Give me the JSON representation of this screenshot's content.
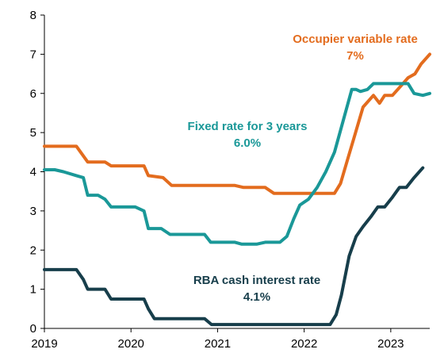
{
  "chart_data": {
    "type": "line",
    "title": "",
    "xlabel": "",
    "ylabel": "",
    "xlim": [
      2019.0,
      2023.45
    ],
    "ylim": [
      0,
      8
    ],
    "yticks": [
      0,
      1,
      2,
      3,
      4,
      5,
      6,
      7,
      8
    ],
    "xticks": [
      "2019",
      "2020",
      "2021",
      "2022",
      "2023"
    ],
    "grid": false,
    "legend": "none",
    "series": [
      {
        "name": "Occupier variable rate",
        "color": "#e36c1e",
        "annotation": [
          "Occupier variable rate",
          "7%"
        ],
        "points": [
          [
            2019.0,
            4.65
          ],
          [
            2019.37,
            4.65
          ],
          [
            2019.5,
            4.25
          ],
          [
            2019.7,
            4.25
          ],
          [
            2019.77,
            4.15
          ],
          [
            2020.15,
            4.15
          ],
          [
            2020.2,
            3.9
          ],
          [
            2020.37,
            3.85
          ],
          [
            2020.47,
            3.65
          ],
          [
            2021.2,
            3.65
          ],
          [
            2021.3,
            3.6
          ],
          [
            2021.47,
            3.6
          ],
          [
            2021.55,
            3.6
          ],
          [
            2021.65,
            3.45
          ],
          [
            2022.35,
            3.45
          ],
          [
            2022.42,
            3.7
          ],
          [
            2022.5,
            4.3
          ],
          [
            2022.58,
            4.9
          ],
          [
            2022.68,
            5.65
          ],
          [
            2022.8,
            5.95
          ],
          [
            2022.87,
            5.75
          ],
          [
            2022.93,
            5.95
          ],
          [
            2023.02,
            5.95
          ],
          [
            2023.12,
            6.2
          ],
          [
            2023.2,
            6.4
          ],
          [
            2023.28,
            6.5
          ],
          [
            2023.35,
            6.75
          ],
          [
            2023.45,
            7.0
          ]
        ]
      },
      {
        "name": "Fixed rate for 3 years",
        "color": "#1a9898",
        "annotation": [
          "Fixed rate for 3 years",
          "6.0%"
        ],
        "points": [
          [
            2019.0,
            4.05
          ],
          [
            2019.12,
            4.05
          ],
          [
            2019.22,
            4.0
          ],
          [
            2019.37,
            3.9
          ],
          [
            2019.45,
            3.85
          ],
          [
            2019.5,
            3.4
          ],
          [
            2019.62,
            3.4
          ],
          [
            2019.7,
            3.3
          ],
          [
            2019.77,
            3.1
          ],
          [
            2020.05,
            3.1
          ],
          [
            2020.15,
            3.0
          ],
          [
            2020.2,
            2.55
          ],
          [
            2020.35,
            2.55
          ],
          [
            2020.45,
            2.4
          ],
          [
            2020.85,
            2.4
          ],
          [
            2020.92,
            2.2
          ],
          [
            2021.2,
            2.2
          ],
          [
            2021.28,
            2.15
          ],
          [
            2021.45,
            2.15
          ],
          [
            2021.55,
            2.2
          ],
          [
            2021.72,
            2.2
          ],
          [
            2021.8,
            2.35
          ],
          [
            2021.88,
            2.8
          ],
          [
            2021.95,
            3.15
          ],
          [
            2022.05,
            3.3
          ],
          [
            2022.15,
            3.6
          ],
          [
            2022.25,
            4.0
          ],
          [
            2022.35,
            4.5
          ],
          [
            2022.45,
            5.3
          ],
          [
            2022.55,
            6.1
          ],
          [
            2022.6,
            6.1
          ],
          [
            2022.65,
            6.05
          ],
          [
            2022.73,
            6.1
          ],
          [
            2022.8,
            6.25
          ],
          [
            2022.9,
            6.25
          ],
          [
            2023.2,
            6.25
          ],
          [
            2023.27,
            6.0
          ],
          [
            2023.37,
            5.95
          ],
          [
            2023.45,
            6.0
          ]
        ]
      },
      {
        "name": "RBA cash interest rate",
        "color": "#173e4b",
        "annotation": [
          "RBA cash interest rate",
          "4.1%"
        ],
        "points": [
          [
            2019.0,
            1.5
          ],
          [
            2019.37,
            1.5
          ],
          [
            2019.45,
            1.25
          ],
          [
            2019.5,
            1.0
          ],
          [
            2019.7,
            1.0
          ],
          [
            2019.77,
            0.75
          ],
          [
            2020.15,
            0.75
          ],
          [
            2020.2,
            0.5
          ],
          [
            2020.27,
            0.25
          ],
          [
            2020.85,
            0.25
          ],
          [
            2020.93,
            0.1
          ],
          [
            2022.3,
            0.1
          ],
          [
            2022.37,
            0.35
          ],
          [
            2022.43,
            0.85
          ],
          [
            2022.52,
            1.85
          ],
          [
            2022.6,
            2.35
          ],
          [
            2022.68,
            2.6
          ],
          [
            2022.77,
            2.85
          ],
          [
            2022.85,
            3.1
          ],
          [
            2022.93,
            3.1
          ],
          [
            2023.02,
            3.35
          ],
          [
            2023.1,
            3.6
          ],
          [
            2023.18,
            3.6
          ],
          [
            2023.27,
            3.85
          ],
          [
            2023.37,
            4.1
          ]
        ]
      }
    ]
  }
}
